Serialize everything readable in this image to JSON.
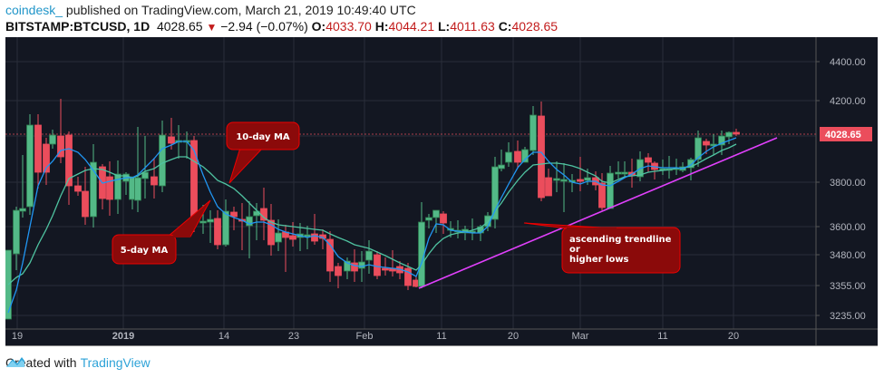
{
  "header": {
    "user": "coindesk_",
    "published": " published on TradingView.com, March 21, 2019 10:49:40 UTC",
    "symbol": "BITSTAMP:BTCUSD, 1D",
    "last": "4028.65",
    "change": "−2.94 (−0.07%)",
    "o_label": "O:",
    "o": "4033.70",
    "h_label": "H:",
    "h": "4044.21",
    "l_label": "L:",
    "l": "4011.63",
    "c_label": "C:",
    "c": "4028.65"
  },
  "footer": {
    "created_with": "Created with",
    "brand": "TradingView"
  },
  "colors": {
    "background": "#131722",
    "up": "#53b987",
    "down": "#eb4d5c",
    "ma5": "#2196f3",
    "ma10": "#4fc3a1",
    "trendline": "#e040fb",
    "callout": "#8b0a0a",
    "price_tag": "#eb4d5c"
  },
  "annotations": {
    "ma10": "10-day MA",
    "ma5": "5-day MA",
    "trend_1": "ascending trendline",
    "trend_2": "or",
    "trend_3": "higher lows"
  },
  "chart_data": {
    "type": "candlestick",
    "title": "BITSTAMP:BTCUSD, 1D",
    "x_ticks": [
      "19",
      "2019",
      "14",
      "23",
      "Feb",
      "11",
      "20",
      "Mar",
      "11",
      "20"
    ],
    "y_ticks": [
      4400.0,
      4200.0,
      4000.0,
      3800.0,
      3600.0,
      3480.0,
      3355.0,
      3235.0
    ],
    "last_price": 4028.65,
    "series": [
      {
        "name": "5-day MA",
        "color": "#2196f3"
      },
      {
        "name": "10-day MA",
        "color": "#4fc3a1"
      },
      {
        "name": "Ascending trendline",
        "color": "#e040fb"
      }
    ],
    "ylim": [
      3200,
      4480
    ]
  }
}
